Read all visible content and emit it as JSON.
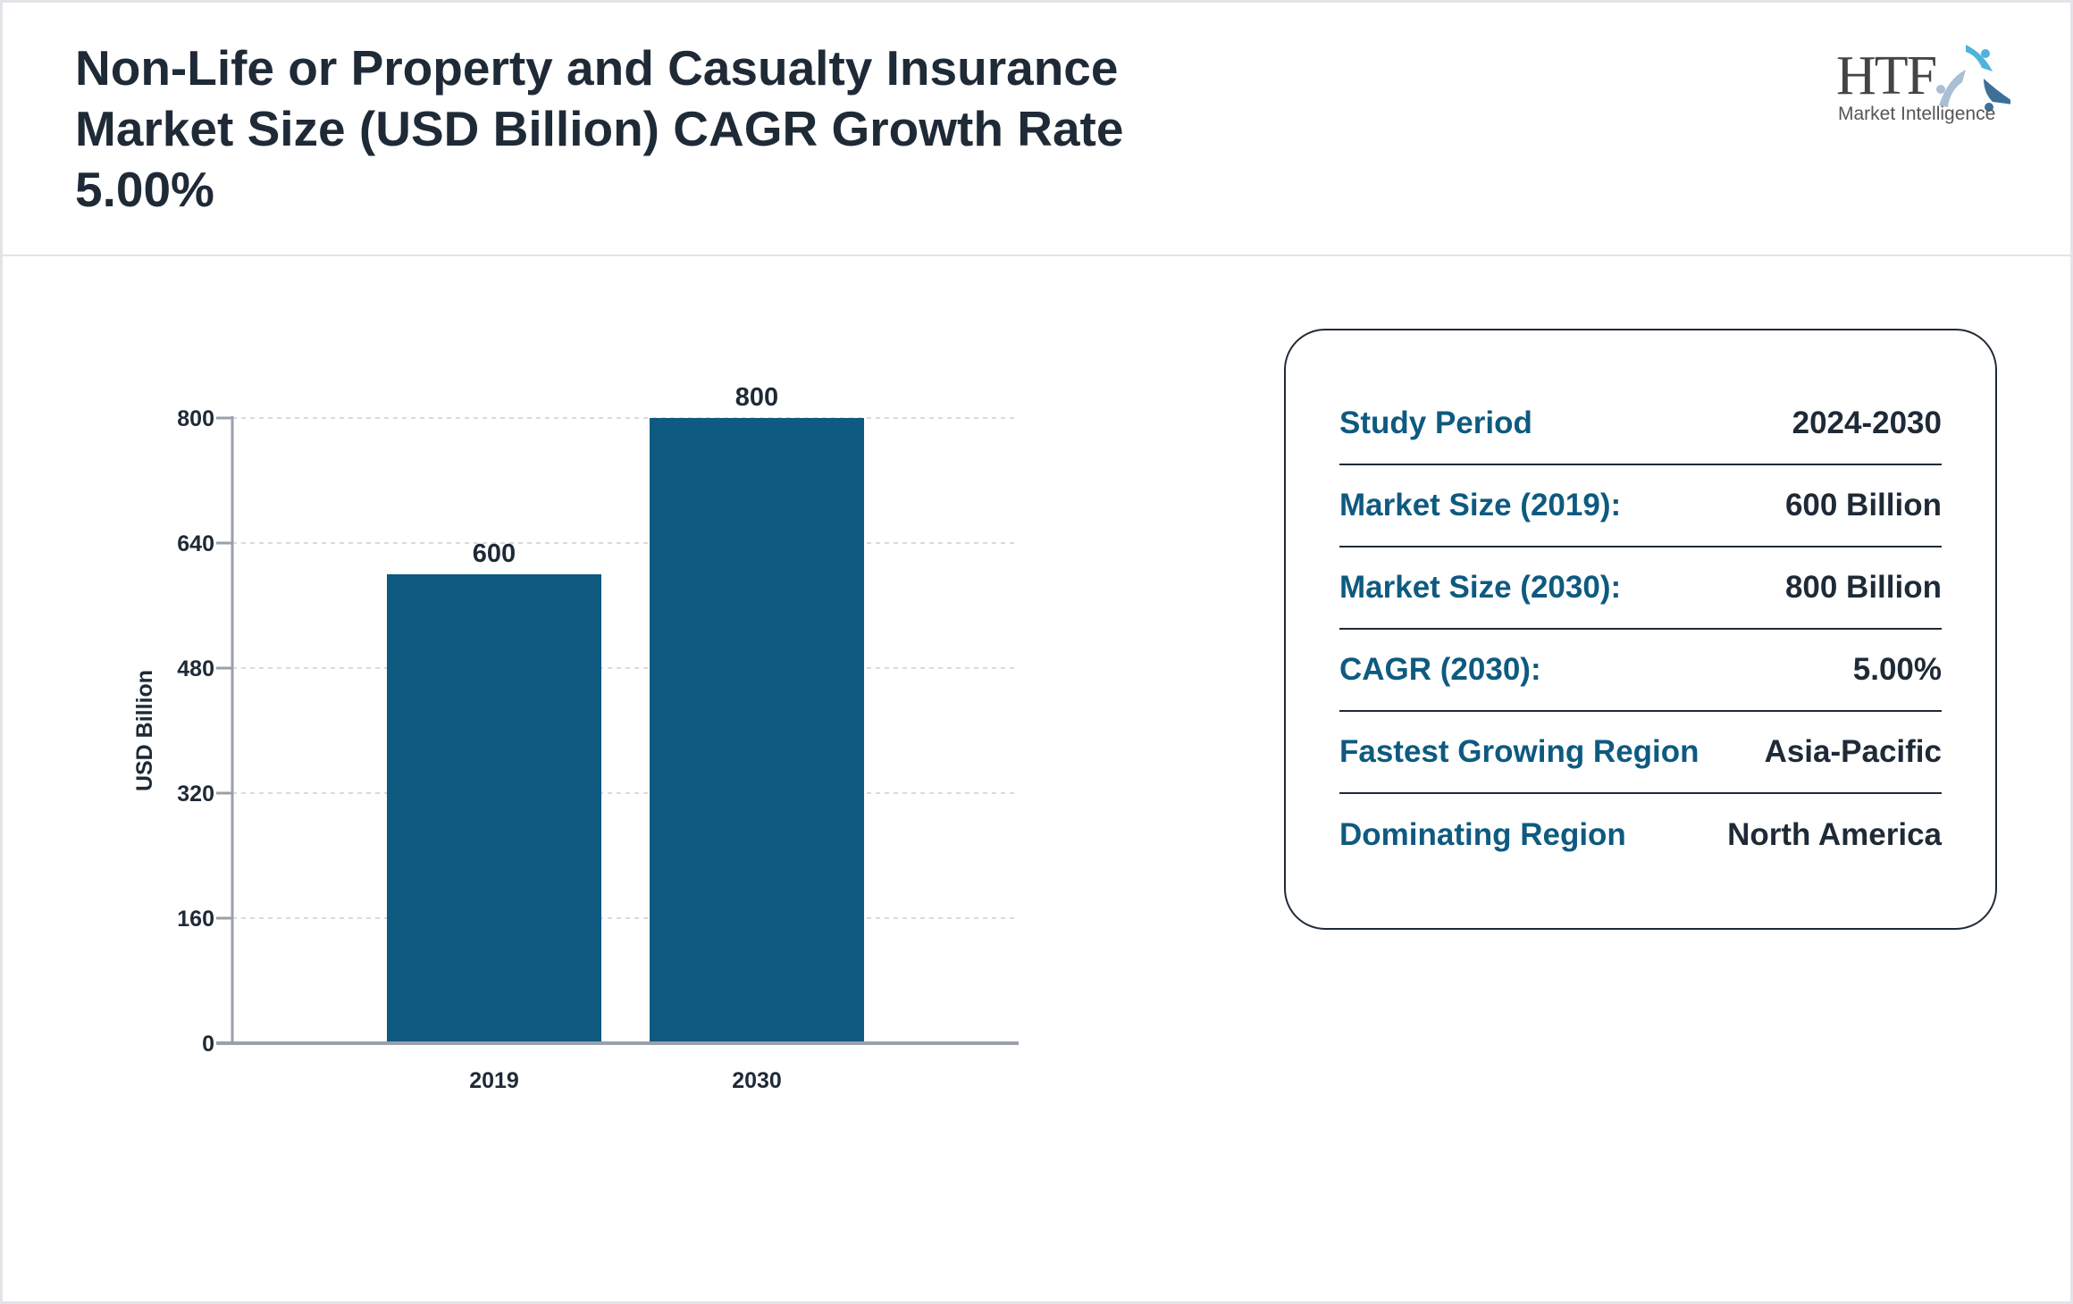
{
  "title": "Non-Life or Property and Casualty Insurance Market Size (USD Billion) CAGR Growth Rate 5.00%",
  "logo": {
    "text": "HTF",
    "subtitle": "Market Intelligence"
  },
  "colors": {
    "bar": "#0e5a80",
    "label": "#0e5a80",
    "text": "#1f2a37",
    "axis": "#9aa0ab"
  },
  "chart_data": {
    "type": "bar",
    "categories": [
      "2019",
      "2030"
    ],
    "values": [
      600,
      800
    ],
    "data_labels": [
      "600",
      "800"
    ],
    "title": "",
    "xlabel": "",
    "ylabel": "USD Billion",
    "ylim": [
      0,
      800
    ],
    "yticks": [
      0,
      160,
      320,
      480,
      640,
      800
    ],
    "grid": true
  },
  "info": [
    {
      "label": "Study Period",
      "value": "2024-2030"
    },
    {
      "label": "Market Size (2019):",
      "value": "600 Billion"
    },
    {
      "label": "Market Size (2030):",
      "value": "800 Billion"
    },
    {
      "label": "CAGR (2030):",
      "value": "5.00%"
    },
    {
      "label": "Fastest Growing Region",
      "value": "Asia-Pacific"
    },
    {
      "label": "Dominating Region",
      "value": "North America"
    }
  ]
}
